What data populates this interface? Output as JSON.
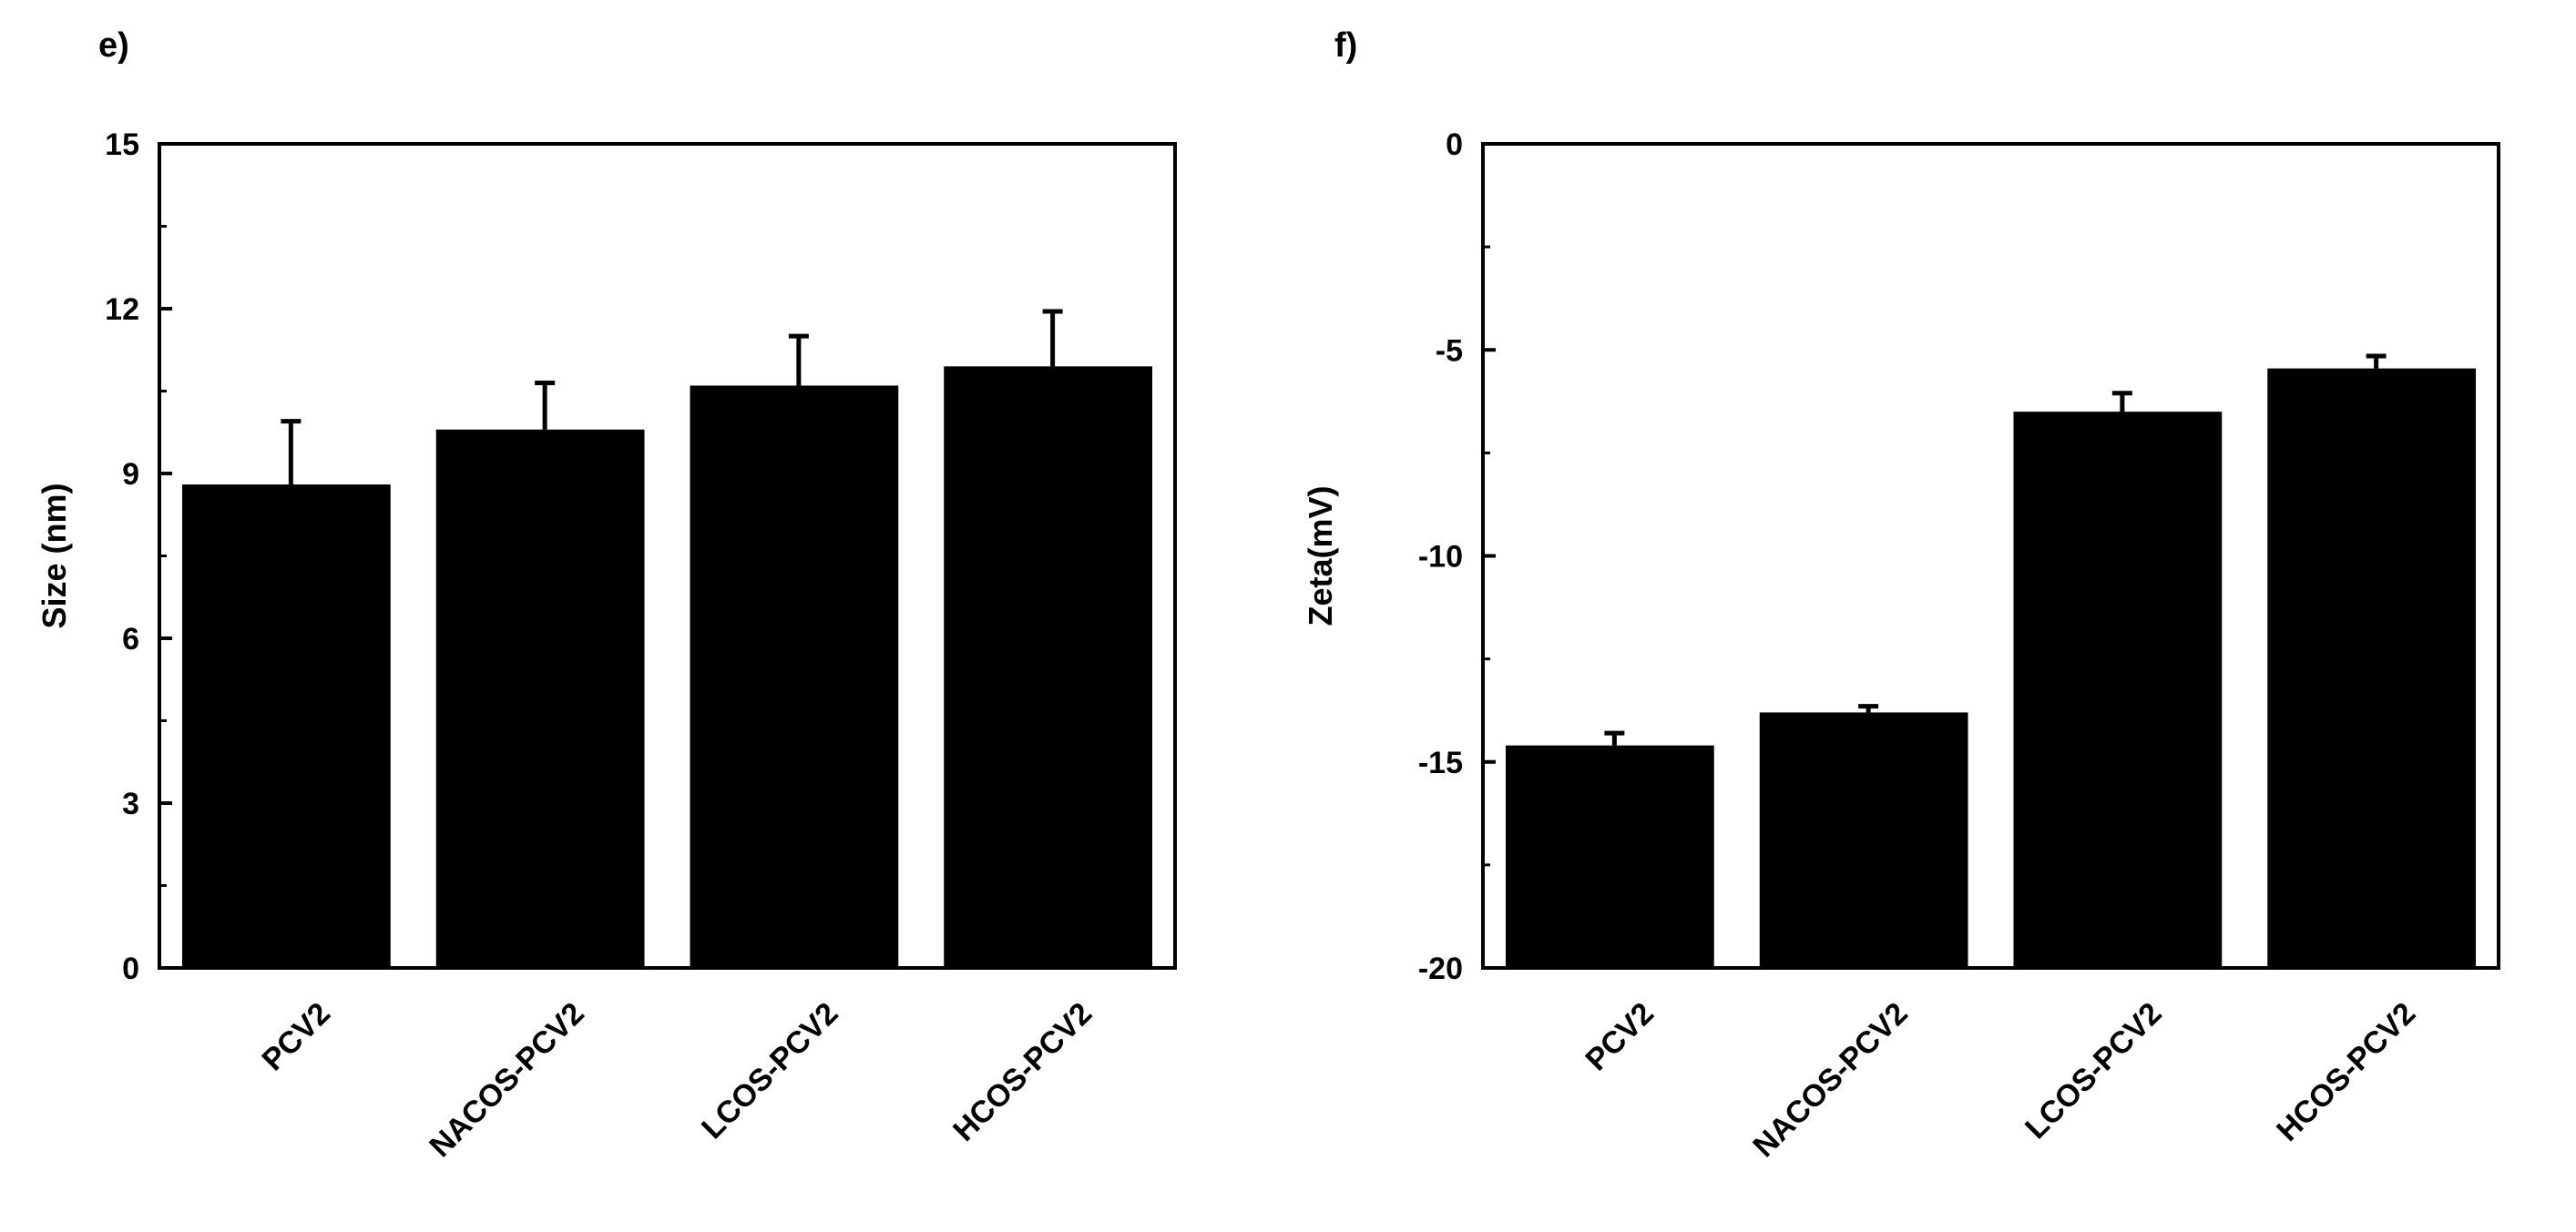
{
  "panels": [
    {
      "label": "e)"
    },
    {
      "label": "f)"
    }
  ],
  "chart_data": [
    {
      "type": "bar",
      "panel": "e)",
      "categories": [
        "PCV2",
        "NACOS-PCV2",
        "LCOS-PCV2",
        "HCOS-PCV2"
      ],
      "values": [
        8.8,
        9.8,
        10.6,
        10.95
      ],
      "error_bars": [
        1.15,
        0.85,
        0.9,
        1.0
      ],
      "error_direction": "up",
      "ylabel": "Size (nm)",
      "xlabel": "",
      "ylim": [
        0,
        15
      ],
      "yticks": [
        "0",
        "3",
        "6",
        "9",
        "12",
        "15"
      ],
      "bar_color": "#000000",
      "grid": false,
      "legend": "none"
    },
    {
      "type": "bar",
      "panel": "f)",
      "categories": [
        "PCV2",
        "NACOS-PCV2",
        "LCOS-PCV2",
        "HCOS-PCV2"
      ],
      "values": [
        -14.6,
        -13.8,
        -6.5,
        -5.45
      ],
      "error_bars": [
        0.3,
        0.15,
        0.45,
        0.3
      ],
      "error_direction": "up",
      "ylabel": "Zeta(mV)",
      "xlabel": "",
      "ylim": [
        -20,
        0
      ],
      "yticks": [
        "-20",
        "-15",
        "-10",
        "-5",
        "0"
      ],
      "bar_color": "#000000",
      "grid": false,
      "legend": "none"
    }
  ]
}
